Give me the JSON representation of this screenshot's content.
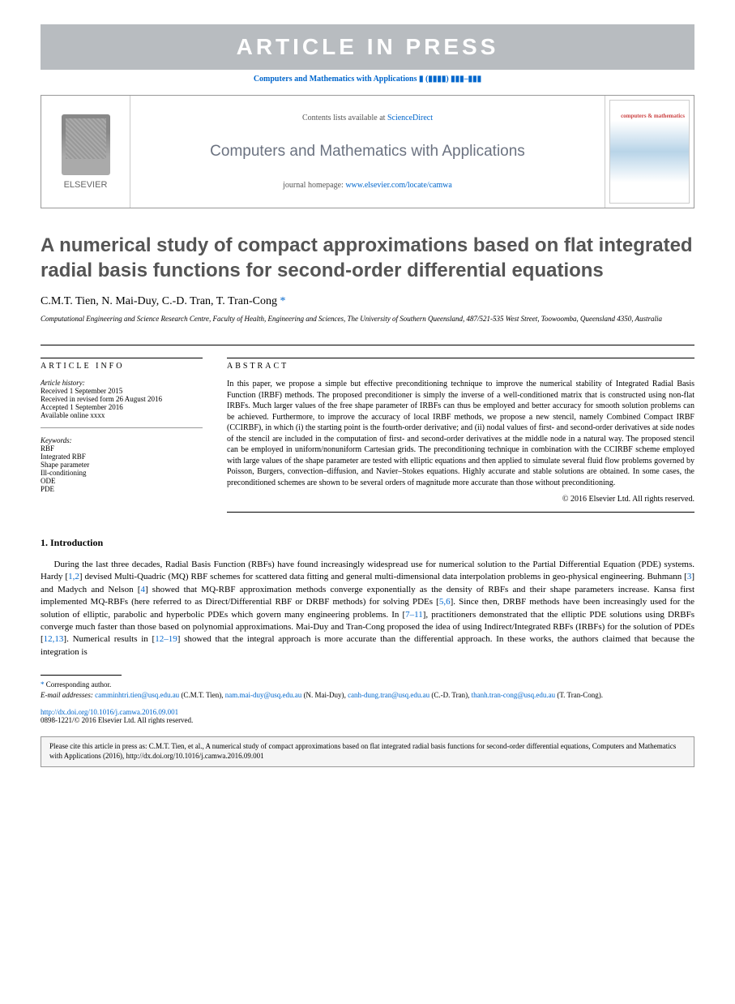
{
  "banner": "ARTICLE IN PRESS",
  "journal_ref": "Computers and Mathematics with Applications ▮ (▮▮▮▮) ▮▮▮–▮▮▮",
  "header": {
    "elsevier": "ELSEVIER",
    "contents_prefix": "Contents lists available at ",
    "sciencedirect": "ScienceDirect",
    "journal_name": "Computers and Mathematics with Applications",
    "homepage_prefix": "journal homepage: ",
    "homepage_url": "www.elsevier.com/locate/camwa"
  },
  "title": "A numerical study of compact approximations based on flat integrated radial basis functions for second-order differential equations",
  "authors": "C.M.T. Tien, N. Mai-Duy, C.-D. Tran, T. Tran-Cong",
  "corr_mark": "*",
  "affiliation": "Computational Engineering and Science Research Centre, Faculty of Health, Engineering and Sciences, The University of Southern Queensland, 487/521-535 West Street, Toowoomba, Queensland 4350, Australia",
  "info": {
    "label": "ARTICLE INFO",
    "history_label": "Article history:",
    "received": "Received 1 September 2015",
    "revised": "Received in revised form 26 August 2016",
    "accepted": "Accepted 1 September 2016",
    "online": "Available online xxxx",
    "keywords_label": "Keywords:",
    "keywords": [
      "RBF",
      "Integrated RBF",
      "Shape parameter",
      "Ill-conditioning",
      "ODE",
      "PDE"
    ]
  },
  "abstract": {
    "label": "ABSTRACT",
    "text": "In this paper, we propose a simple but effective preconditioning technique to improve the numerical stability of Integrated Radial Basis Function (IRBF) methods. The proposed preconditioner is simply the inverse of a well-conditioned matrix that is constructed using non-flat IRBFs. Much larger values of the free shape parameter of IRBFs can thus be employed and better accuracy for smooth solution problems can be achieved. Furthermore, to improve the accuracy of local IRBF methods, we propose a new stencil, namely Combined Compact IRBF (CCIRBF), in which (i) the starting point is the fourth-order derivative; and (ii) nodal values of first- and second-order derivatives at side nodes of the stencil are included in the computation of first- and second-order derivatives at the middle node in a natural way. The proposed stencil can be employed in uniform/nonuniform Cartesian grids. The preconditioning technique in combination with the CCIRBF scheme employed with large values of the shape parameter are tested with elliptic equations and then applied to simulate several fluid flow problems governed by Poisson, Burgers, convection–diffusion, and Navier–Stokes equations. Highly accurate and stable solutions are obtained. In some cases, the preconditioned schemes are shown to be several orders of magnitude more accurate than those without preconditioning.",
    "copyright": "© 2016 Elsevier Ltd. All rights reserved."
  },
  "intro": {
    "heading": "1. Introduction",
    "p1_a": "During the last three decades, Radial Basis Function (RBFs) have found increasingly widespread use for numerical solution to the Partial Differential Equation (PDE) systems. Hardy [",
    "r1": "1,2",
    "p1_b": "] devised Multi-Quadric (MQ) RBF schemes for scattered data fitting and general multi-dimensional data interpolation problems in geo-physical engineering. Buhmann [",
    "r2": "3",
    "p1_c": "] and Madych and Nelson [",
    "r3": "4",
    "p1_d": "] showed that MQ-RBF approximation methods converge exponentially as the density of RBFs and their shape parameters increase. Kansa first implemented MQ-RBFs (here referred to as Direct/Differential RBF or DRBF methods) for solving PDEs [",
    "r4": "5,6",
    "p1_e": "]. Since then, DRBF methods have been increasingly used for the solution of elliptic, parabolic and hyperbolic PDEs which govern many engineering problems. In [",
    "r5": "7–11",
    "p1_f": "], practitioners demonstrated that the elliptic PDE solutions using DRBFs converge much faster than those based on polynomial approximations. Mai-Duy and Tran-Cong proposed the idea of using Indirect/Integrated RBFs (IRBFs) for the solution of PDEs [",
    "r6": "12,13",
    "p1_g": "]. Numerical results in [",
    "r7": "12–19",
    "p1_h": "] showed that the integral approach is more accurate than the differential approach. In these works, the authors claimed that because the integration is"
  },
  "footnote": {
    "corr": "Corresponding author.",
    "email_label": "E-mail addresses:",
    "emails": [
      {
        "addr": "camminhtri.tien@usq.edu.au",
        "name": "(C.M.T. Tien)"
      },
      {
        "addr": "nam.mai-duy@usq.edu.au",
        "name": "(N. Mai-Duy)"
      },
      {
        "addr": "canh-dung.tran@usq.edu.au",
        "name": "(C.-D. Tran)"
      },
      {
        "addr": "thanh.tran-cong@usq.edu.au",
        "name": "(T. Tran-Cong)"
      }
    ]
  },
  "doi": {
    "url": "http://dx.doi.org/10.1016/j.camwa.2016.09.001",
    "issn": "0898-1221/© 2016 Elsevier Ltd. All rights reserved."
  },
  "citation": "Please cite this article in press as: C.M.T. Tien, et al., A numerical study of compact approximations based on flat integrated radial basis functions for second-order differential equations, Computers and Mathematics with Applications (2016), http://dx.doi.org/10.1016/j.camwa.2016.09.001"
}
